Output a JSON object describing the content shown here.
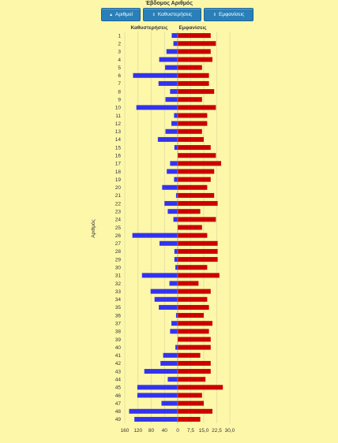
{
  "title": "Έβδομος Αριθμός",
  "buttons": [
    {
      "icon": "sort-asc-icon",
      "glyph": "▲",
      "label": "Αριθμοί"
    },
    {
      "icon": "sort-both-icon",
      "glyph": "⇕",
      "label": "Καθυστερήσεις"
    },
    {
      "icon": "sort-both-icon",
      "glyph": "⇕",
      "label": "Εμφανίσεις"
    }
  ],
  "chart_data": {
    "type": "bar",
    "orientation": "horizontal",
    "ylabel": "Αριθμός",
    "left_header": "Καθυστερήσεις",
    "right_header": "Εμφανίσεις",
    "left_color": "#3333ee",
    "right_color": "#cc0000",
    "left_ticks": [
      "160",
      "120",
      "80",
      "40"
    ],
    "right_ticks": [
      "0",
      "7,5",
      "15,0",
      "22,5",
      "30,0"
    ],
    "left_xlim": [
      0,
      160
    ],
    "right_xlim": [
      0,
      30
    ],
    "grid": true,
    "categories": [
      "1",
      "2",
      "3",
      "4",
      "5",
      "6",
      "7",
      "8",
      "9",
      "10",
      "11",
      "12",
      "13",
      "14",
      "15",
      "16",
      "17",
      "18",
      "19",
      "20",
      "21",
      "22",
      "23",
      "24",
      "25",
      "26",
      "27",
      "28",
      "29",
      "30",
      "31",
      "32",
      "33",
      "34",
      "35",
      "36",
      "37",
      "38",
      "39",
      "40",
      "41",
      "42",
      "43",
      "44",
      "45",
      "46",
      "47",
      "48",
      "49"
    ],
    "series": [
      {
        "name": "Καθυστερήσεις",
        "values": [
          18,
          13,
          34,
          56,
          38,
          135,
          58,
          23,
          37,
          125,
          11,
          19,
          37,
          60,
          10,
          0,
          23,
          33,
          11,
          47,
          5,
          40,
          30,
          13,
          0,
          137,
          55,
          10,
          10,
          7,
          108,
          25,
          82,
          70,
          57,
          5,
          19,
          23,
          0,
          7,
          44,
          52,
          101,
          30,
          122,
          122,
          49,
          147,
          131
        ]
      },
      {
        "name": "Εμφανίσεις",
        "values": [
          19,
          22,
          19,
          20,
          14,
          18,
          18,
          21,
          14,
          22,
          17,
          17,
          14,
          15,
          19,
          22,
          25,
          21,
          19,
          17,
          21,
          23,
          13,
          22,
          14,
          17,
          23,
          23,
          23,
          17,
          24,
          12,
          19,
          17,
          18,
          15,
          20,
          18,
          19,
          19,
          13,
          19,
          19,
          16,
          26,
          14,
          15,
          20,
          13
        ]
      }
    ]
  }
}
